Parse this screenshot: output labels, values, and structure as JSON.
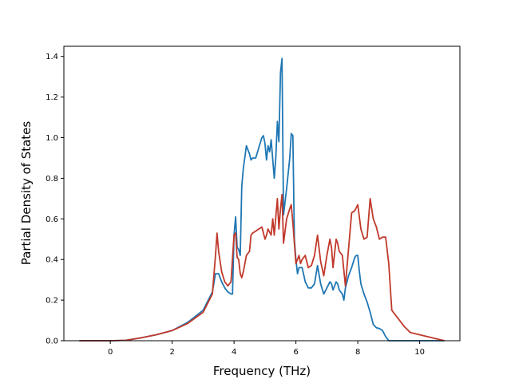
{
  "chart_data": {
    "type": "line",
    "title": "",
    "xlabel": "Frequency (THz)",
    "ylabel": "Partial Density of States",
    "xlim": [
      -1.5,
      11.3
    ],
    "ylim": [
      0.0,
      1.45
    ],
    "xticks": [
      0,
      2,
      4,
      6,
      8,
      10
    ],
    "xtick_labels": [
      "0",
      "2",
      "4",
      "6",
      "8",
      "10"
    ],
    "yticks": [
      0.0,
      0.2,
      0.4,
      0.6,
      0.8,
      1.0,
      1.2,
      1.4
    ],
    "ytick_labels": [
      "0.0",
      "0.2",
      "0.4",
      "0.6",
      "0.8",
      "1.0",
      "1.2",
      "1.4"
    ],
    "grid": false,
    "legend": "none",
    "series": [
      {
        "color": "#1f77b4",
        "x": [
          -1.0,
          0.0,
          0.5,
          1.0,
          1.5,
          2.0,
          2.5,
          3.0,
          3.3,
          3.4,
          3.5,
          3.6,
          3.7,
          3.8,
          3.9,
          3.95,
          4.0,
          4.05,
          4.1,
          4.15,
          4.2,
          4.25,
          4.3,
          4.4,
          4.5,
          4.55,
          4.6,
          4.7,
          4.8,
          4.9,
          4.95,
          5.0,
          5.05,
          5.1,
          5.15,
          5.2,
          5.3,
          5.35,
          5.4,
          5.45,
          5.5,
          5.55,
          5.6,
          5.7,
          5.8,
          5.85,
          5.9,
          5.95,
          6.0,
          6.05,
          6.1,
          6.2,
          6.3,
          6.4,
          6.5,
          6.6,
          6.7,
          6.8,
          6.9,
          7.0,
          7.1,
          7.15,
          7.2,
          7.3,
          7.35,
          7.4,
          7.5,
          7.55,
          7.6,
          7.65,
          7.7,
          7.8,
          7.9,
          7.95,
          8.0,
          8.05,
          8.1,
          8.2,
          8.3,
          8.4,
          8.5,
          8.6,
          8.7,
          8.8,
          8.9,
          9.0,
          9.1,
          9.5,
          10.8
        ],
        "y": [
          0.0,
          0.0,
          0.002,
          0.014,
          0.03,
          0.05,
          0.09,
          0.15,
          0.24,
          0.33,
          0.33,
          0.29,
          0.26,
          0.24,
          0.23,
          0.23,
          0.52,
          0.61,
          0.46,
          0.45,
          0.42,
          0.76,
          0.85,
          0.96,
          0.92,
          0.89,
          0.9,
          0.9,
          0.95,
          1.0,
          1.01,
          0.97,
          0.89,
          0.96,
          0.93,
          0.99,
          0.8,
          0.9,
          1.08,
          0.98,
          1.32,
          1.39,
          0.62,
          0.75,
          0.9,
          1.02,
          1.01,
          0.5,
          0.4,
          0.33,
          0.36,
          0.36,
          0.29,
          0.26,
          0.26,
          0.28,
          0.37,
          0.28,
          0.23,
          0.26,
          0.29,
          0.28,
          0.25,
          0.29,
          0.28,
          0.25,
          0.23,
          0.2,
          0.26,
          0.29,
          0.32,
          0.36,
          0.41,
          0.42,
          0.42,
          0.34,
          0.28,
          0.23,
          0.19,
          0.14,
          0.08,
          0.064,
          0.06,
          0.05,
          0.02,
          0.0,
          0.0,
          0.0,
          0.0
        ]
      },
      {
        "color": "#c0392b",
        "x": [
          -1.0,
          0.0,
          0.5,
          1.0,
          1.5,
          2.0,
          2.5,
          3.0,
          3.3,
          3.4,
          3.45,
          3.5,
          3.6,
          3.7,
          3.8,
          3.9,
          4.0,
          4.05,
          4.1,
          4.15,
          4.2,
          4.25,
          4.3,
          4.4,
          4.5,
          4.55,
          4.6,
          4.7,
          4.8,
          4.9,
          5.0,
          5.05,
          5.1,
          5.2,
          5.25,
          5.3,
          5.4,
          5.45,
          5.5,
          5.55,
          5.6,
          5.7,
          5.8,
          5.85,
          5.9,
          6.0,
          6.1,
          6.15,
          6.2,
          6.3,
          6.35,
          6.4,
          6.5,
          6.6,
          6.7,
          6.8,
          6.9,
          7.0,
          7.1,
          7.15,
          7.2,
          7.3,
          7.35,
          7.4,
          7.5,
          7.6,
          7.7,
          7.8,
          7.9,
          8.0,
          8.1,
          8.2,
          8.3,
          8.4,
          8.5,
          8.6,
          8.7,
          8.8,
          8.9,
          9.0,
          9.1,
          9.5,
          9.7,
          10.8
        ],
        "y": [
          0.0,
          0.0,
          0.002,
          0.014,
          0.03,
          0.05,
          0.085,
          0.14,
          0.23,
          0.42,
          0.53,
          0.44,
          0.34,
          0.29,
          0.27,
          0.29,
          0.52,
          0.53,
          0.41,
          0.4,
          0.33,
          0.31,
          0.34,
          0.42,
          0.44,
          0.52,
          0.53,
          0.54,
          0.55,
          0.56,
          0.5,
          0.52,
          0.55,
          0.52,
          0.6,
          0.52,
          0.7,
          0.55,
          0.65,
          0.72,
          0.48,
          0.6,
          0.65,
          0.67,
          0.58,
          0.38,
          0.42,
          0.38,
          0.4,
          0.42,
          0.39,
          0.36,
          0.37,
          0.42,
          0.52,
          0.39,
          0.32,
          0.42,
          0.5,
          0.46,
          0.36,
          0.5,
          0.48,
          0.44,
          0.42,
          0.27,
          0.45,
          0.63,
          0.64,
          0.67,
          0.55,
          0.5,
          0.51,
          0.7,
          0.6,
          0.56,
          0.5,
          0.51,
          0.51,
          0.38,
          0.15,
          0.07,
          0.04,
          0.0
        ]
      }
    ]
  }
}
